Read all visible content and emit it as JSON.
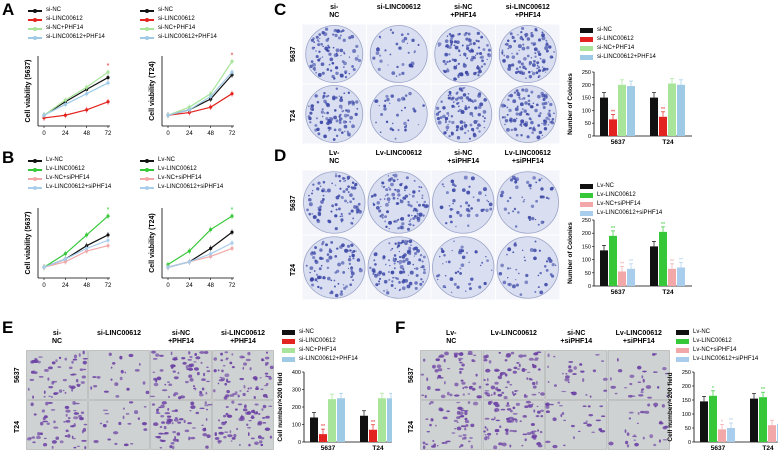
{
  "panels": {
    "A": {
      "label": "A"
    },
    "B": {
      "label": "B"
    },
    "C": {
      "label": "C"
    },
    "D": {
      "label": "D"
    },
    "E": {
      "label": "E"
    },
    "F": {
      "label": "F"
    }
  },
  "colors": {
    "black": "#111111",
    "red": "#e3231f",
    "green": "#36c838",
    "light_green": "#a8e59a",
    "blue": "#9ecae6",
    "pink": "#f2a8a8",
    "light_blue": "#a9cdec",
    "dish_bg": "#d9dff1",
    "dish_ink": "#3b47a6",
    "well_bg": "#cfd2d3",
    "cell_ink": "#6a3fa3"
  },
  "legends": {
    "A": [
      "si-NC",
      "si-LINC00612",
      "si-NC+PHF14",
      "si-LINC00612+PHF14"
    ],
    "B": [
      "Lv-NC",
      "Lv-LINC00612",
      "Lv-NC+siPHF14",
      "Lv-LINC00612+siPHF14"
    ]
  },
  "photo_panels": {
    "C": {
      "columns": [
        "si-\nNC",
        "si-LINC00612",
        "si-NC\n+PHF14",
        "si-LINC00612\n+PHF14"
      ],
      "rows": [
        "5637",
        "T24"
      ]
    },
    "D": {
      "columns": [
        "Lv-\nNC",
        "Lv-LINC00612",
        "si-NC\n+siPHF14",
        "Lv-LINC00612\n+siPHF14"
      ],
      "rows": [
        "5637",
        "T24"
      ]
    },
    "E": {
      "columns": [
        "si-\nNC",
        "si-LINC00612",
        "si-NC\n+PHF14",
        "si-LINC00612\n+PHF14"
      ],
      "rows": [
        "5637",
        "T24"
      ]
    },
    "F": {
      "columns": [
        "Lv-\nNC",
        "Lv-LINC00612",
        "si-NC\n+siPHF14",
        "Lv-LINC00612\n+siPHF14"
      ],
      "rows": [
        "5637",
        "T24"
      ]
    }
  },
  "chart_data": [
    {
      "id": "A1",
      "type": "line",
      "ylabel": "Cell viability (5637)",
      "x": [
        0,
        24,
        48,
        72
      ],
      "xticks": [
        "0",
        "24",
        "48",
        "72"
      ],
      "series": [
        {
          "name": "si-NC",
          "values": [
            0.2,
            0.45,
            0.68,
            0.9
          ]
        },
        {
          "name": "si-LINC00612",
          "values": [
            0.15,
            0.2,
            0.3,
            0.45
          ]
        },
        {
          "name": "si-NC+PHF14",
          "values": [
            0.2,
            0.48,
            0.72,
            1.0
          ]
        },
        {
          "name": "si-LINC00612+PHF14",
          "values": [
            0.2,
            0.4,
            0.6,
            0.8
          ]
        }
      ]
    },
    {
      "id": "A2",
      "type": "line",
      "ylabel": "Cell viability (T24)",
      "x": [
        0,
        24,
        48,
        72
      ],
      "xticks": [
        "0",
        "24",
        "48",
        "72"
      ],
      "series": [
        {
          "name": "si-NC",
          "values": [
            0.2,
            0.3,
            0.5,
            0.95
          ]
        },
        {
          "name": "si-LINC00612",
          "values": [
            0.2,
            0.25,
            0.35,
            0.6
          ]
        },
        {
          "name": "si-NC+PHF14",
          "values": [
            0.2,
            0.35,
            0.6,
            1.2
          ]
        },
        {
          "name": "si-LINC00612+PHF14",
          "values": [
            0.2,
            0.3,
            0.55,
            1.0
          ]
        }
      ]
    },
    {
      "id": "B1",
      "type": "line",
      "ylabel": "Cell viability (5637)",
      "x": [
        0,
        24,
        48,
        72
      ],
      "xticks": [
        "0",
        "24",
        "48",
        "72"
      ],
      "series": [
        {
          "name": "Lv-NC",
          "values": [
            0.2,
            0.35,
            0.6,
            0.8
          ]
        },
        {
          "name": "Lv-LINC00612",
          "values": [
            0.2,
            0.45,
            0.8,
            1.15
          ]
        },
        {
          "name": "Lv-NC+siPHF14",
          "values": [
            0.2,
            0.3,
            0.5,
            0.6
          ]
        },
        {
          "name": "Lv-LINC00612+siPHF14",
          "values": [
            0.2,
            0.35,
            0.55,
            0.7
          ]
        }
      ]
    },
    {
      "id": "B2",
      "type": "line",
      "ylabel": "Cell viability (T24)",
      "x": [
        0,
        24,
        48,
        72
      ],
      "xticks": [
        "0",
        "24",
        "48",
        "72"
      ],
      "series": [
        {
          "name": "Lv-NC",
          "values": [
            0.2,
            0.3,
            0.55,
            0.85
          ]
        },
        {
          "name": "Lv-LINC00612",
          "values": [
            0.25,
            0.5,
            0.9,
            1.15
          ]
        },
        {
          "name": "Lv-NC+siPHF14",
          "values": [
            0.2,
            0.3,
            0.4,
            0.55
          ]
        },
        {
          "name": "Lv-LINC00612+siPHF14",
          "values": [
            0.2,
            0.3,
            0.45,
            0.65
          ]
        }
      ]
    },
    {
      "id": "C",
      "type": "bar",
      "ylabel": "Number of Colonies",
      "categories": [
        "5637",
        "T24"
      ],
      "ylim": [
        0,
        250
      ],
      "yticks": [
        0,
        50,
        100,
        150,
        200,
        250
      ],
      "series": [
        {
          "name": "si-NC",
          "values": [
            150,
            150
          ]
        },
        {
          "name": "si-LINC00612",
          "values": [
            65,
            75
          ]
        },
        {
          "name": "si-NC+PHF14",
          "values": [
            200,
            205
          ]
        },
        {
          "name": "si-LINC00612+PHF14",
          "values": [
            195,
            200
          ]
        }
      ],
      "annotations": [
        "**",
        "**",
        "**"
      ]
    },
    {
      "id": "D",
      "type": "bar",
      "ylabel": "Number of Colonies",
      "categories": [
        "5637",
        "T24"
      ],
      "ylim": [
        0,
        250
      ],
      "yticks": [
        0,
        50,
        100,
        150,
        200,
        250
      ],
      "series": [
        {
          "name": "Lv-NC",
          "values": [
            135,
            150
          ]
        },
        {
          "name": "Lv-LINC00612",
          "values": [
            190,
            205
          ]
        },
        {
          "name": "Lv-NC+siPHF14",
          "values": [
            55,
            65
          ]
        },
        {
          "name": "Lv-LINC00612+siPHF14",
          "values": [
            65,
            70
          ]
        }
      ],
      "annotations": [
        "**",
        "**",
        "**",
        "**",
        "**",
        "**"
      ]
    },
    {
      "id": "E",
      "type": "bar",
      "ylabel": "Cell number/×200 field",
      "categories": [
        "5637",
        "T24"
      ],
      "ylim": [
        0,
        400
      ],
      "yticks": [
        0,
        100,
        200,
        300,
        400
      ],
      "series": [
        {
          "name": "si-NC",
          "values": [
            140,
            150
          ]
        },
        {
          "name": "si-LINC00612",
          "values": [
            45,
            70
          ]
        },
        {
          "name": "si-NC+PHF14",
          "values": [
            245,
            250
          ]
        },
        {
          "name": "si-LINC00612+PHF14",
          "values": [
            250,
            250
          ]
        }
      ],
      "annotations": [
        "**",
        "**",
        "**",
        "**"
      ]
    },
    {
      "id": "F",
      "type": "bar",
      "ylabel": "Cell number/×200 field",
      "categories": [
        "5637",
        "T24"
      ],
      "ylim": [
        0,
        250
      ],
      "yticks": [
        0,
        50,
        100,
        150,
        200,
        250
      ],
      "series": [
        {
          "name": "Lv-NC",
          "values": [
            145,
            155
          ]
        },
        {
          "name": "Lv-LINC00612",
          "values": [
            165,
            160
          ]
        },
        {
          "name": "Lv-NC+siPHF14",
          "values": [
            45,
            60
          ]
        },
        {
          "name": "Lv-LINC00612+siPHF14",
          "values": [
            50,
            65
          ]
        }
      ],
      "annotations": [
        "*",
        "*",
        "**",
        "**"
      ]
    }
  ]
}
